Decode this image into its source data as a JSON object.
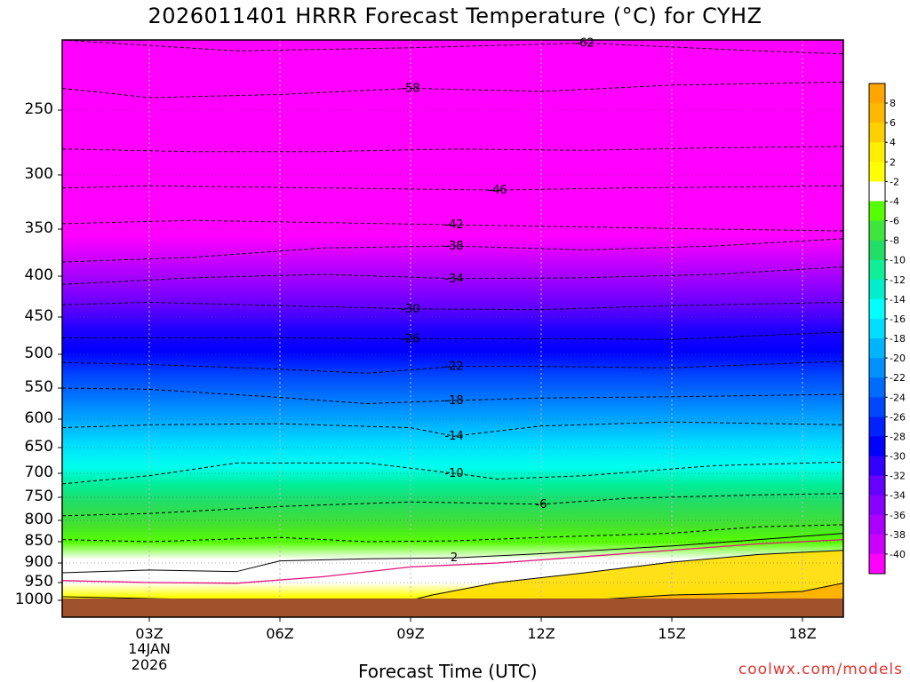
{
  "title": "2026011401 HRRR Forecast Temperature (°C) for CYHZ",
  "xlabel": "Forecast Time (UTC)",
  "credit": "coolwx.com/models",
  "date_label": {
    "day": "14JAN",
    "year": "2026"
  },
  "colors": {
    "ground": "#a0522d",
    "freezing_line": "#e0147a",
    "credit": "#e0342e"
  },
  "chart_data": {
    "type": "contour",
    "title": "2026011401 HRRR Forecast Temperature (°C) for CYHZ",
    "xlabel": "Forecast Time (UTC)",
    "ylabel": "",
    "y_axis_scale": "pressure (hPa), log-like, increasing downward",
    "ylim": [
      1000,
      205
    ],
    "xlim_hours": [
      1,
      19
    ],
    "x_ticks": [
      "03Z",
      "06Z",
      "09Z",
      "12Z",
      "15Z",
      "18Z"
    ],
    "x_tick_hours": [
      3,
      6,
      9,
      12,
      15,
      18
    ],
    "y_ticks": [
      250,
      300,
      350,
      400,
      450,
      500,
      550,
      600,
      650,
      700,
      750,
      800,
      850,
      900,
      950,
      1000
    ],
    "grid": true,
    "colorbar": {
      "position": "right",
      "labels": [
        "8",
        "6",
        "4",
        "2",
        "-2",
        "-4",
        "-6",
        "-8",
        "-10",
        "-12",
        "-14",
        "-16",
        "-18",
        "-20",
        "-22",
        "-24",
        "-26",
        "-28",
        "-30",
        "-32",
        "-34",
        "-36",
        "-38",
        "-40"
      ],
      "colors": [
        "#ffa500",
        "#ffb800",
        "#ffd000",
        "#ffee00",
        "#ffff00",
        "#ffffff",
        "#55ff00",
        "#3fe43f",
        "#22dd66",
        "#11ee99",
        "#00eecc",
        "#00ffff",
        "#00ddff",
        "#00b4ff",
        "#0090ff",
        "#006cff",
        "#0048ff",
        "#0022ff",
        "#0000ff",
        "#3300ff",
        "#6600ff",
        "#8800ff",
        "#aa00ff",
        "#cc00ff",
        "#ff00ff"
      ]
    },
    "contours": [
      {
        "value": -62,
        "label": "-62",
        "points": [
          [
            1,
            205
          ],
          [
            5,
            212
          ],
          [
            9,
            210
          ],
          [
            13,
            207
          ],
          [
            17,
            212
          ],
          [
            19,
            214
          ]
        ]
      },
      {
        "value": -58,
        "label": "-58",
        "points": [
          [
            1,
            236
          ],
          [
            3,
            242
          ],
          [
            6,
            240
          ],
          [
            9,
            236
          ],
          [
            12,
            238
          ],
          [
            15,
            234
          ],
          [
            19,
            232
          ]
        ]
      },
      {
        "value": -50,
        "label": "",
        "points": [
          [
            1,
            280
          ],
          [
            4,
            282
          ],
          [
            7,
            282
          ],
          [
            10,
            280
          ],
          [
            13,
            281
          ],
          [
            16,
            279
          ],
          [
            19,
            278
          ]
        ]
      },
      {
        "value": -46,
        "label": "-46",
        "points": [
          [
            1,
            312
          ],
          [
            3,
            310
          ],
          [
            7,
            312
          ],
          [
            11,
            314
          ],
          [
            14,
            312
          ],
          [
            19,
            310
          ]
        ]
      },
      {
        "value": -42,
        "label": "-42",
        "points": [
          [
            1,
            345
          ],
          [
            4,
            342
          ],
          [
            7,
            344
          ],
          [
            10,
            346
          ],
          [
            13,
            348
          ],
          [
            16,
            350
          ],
          [
            19,
            352
          ]
        ]
      },
      {
        "value": -38,
        "label": "-38",
        "points": [
          [
            1,
            385
          ],
          [
            4,
            380
          ],
          [
            7,
            370
          ],
          [
            10,
            368
          ],
          [
            13,
            372
          ],
          [
            16,
            368
          ],
          [
            19,
            360
          ]
        ]
      },
      {
        "value": -34,
        "label": "-34",
        "points": [
          [
            1,
            410
          ],
          [
            4,
            402
          ],
          [
            7,
            398
          ],
          [
            10,
            403
          ],
          [
            13,
            402
          ],
          [
            16,
            398
          ],
          [
            19,
            390
          ]
        ]
      },
      {
        "value": -30,
        "label": "-30",
        "points": [
          [
            1,
            435
          ],
          [
            3,
            432
          ],
          [
            6,
            436
          ],
          [
            9,
            440
          ],
          [
            12,
            441
          ],
          [
            15,
            436
          ],
          [
            19,
            432
          ]
        ]
      },
      {
        "value": -26,
        "label": "-26",
        "points": [
          [
            1,
            478
          ],
          [
            3,
            478
          ],
          [
            6,
            478
          ],
          [
            9,
            479
          ],
          [
            12,
            479
          ],
          [
            15,
            480
          ],
          [
            19,
            470
          ]
        ]
      },
      {
        "value": -22,
        "label": "-22",
        "points": [
          [
            1,
            512
          ],
          [
            3,
            515
          ],
          [
            6,
            522
          ],
          [
            8,
            528
          ],
          [
            10,
            518
          ],
          [
            12,
            518
          ],
          [
            15,
            520
          ],
          [
            19,
            510
          ]
        ]
      },
      {
        "value": -18,
        "label": "-18",
        "points": [
          [
            1,
            550
          ],
          [
            3,
            552
          ],
          [
            6,
            565
          ],
          [
            8,
            575
          ],
          [
            10,
            570
          ],
          [
            12,
            566
          ],
          [
            15,
            564
          ],
          [
            19,
            560
          ]
        ]
      },
      {
        "value": -14,
        "label": "-14",
        "points": [
          [
            1,
            615
          ],
          [
            3,
            610
          ],
          [
            6,
            608
          ],
          [
            9,
            615
          ],
          [
            10,
            630
          ],
          [
            12,
            612
          ],
          [
            15,
            605
          ],
          [
            19,
            610
          ]
        ]
      },
      {
        "value": -10,
        "label": "-10",
        "points": [
          [
            1,
            722
          ],
          [
            3,
            705
          ],
          [
            5,
            680
          ],
          [
            8,
            680
          ],
          [
            10,
            700
          ],
          [
            11,
            712
          ],
          [
            13,
            705
          ],
          [
            16,
            685
          ],
          [
            19,
            678
          ]
        ]
      },
      {
        "value": -6,
        "label": "-6",
        "points": [
          [
            1,
            790
          ],
          [
            3,
            785
          ],
          [
            6,
            770
          ],
          [
            9,
            760
          ],
          [
            12,
            765
          ],
          [
            14,
            752
          ],
          [
            17,
            745
          ],
          [
            19,
            742
          ]
        ]
      },
      {
        "value": -2,
        "label": "",
        "points": [
          [
            1,
            845
          ],
          [
            3,
            850
          ],
          [
            6,
            840
          ],
          [
            8,
            850
          ],
          [
            10,
            848
          ],
          [
            12,
            840
          ],
          [
            15,
            830
          ],
          [
            17,
            815
          ],
          [
            19,
            810
          ]
        ]
      },
      {
        "value": 2,
        "label": "2",
        "points": [
          [
            1,
            925
          ],
          [
            3,
            918
          ],
          [
            5,
            922
          ],
          [
            6,
            895
          ],
          [
            8,
            890
          ],
          [
            10,
            888
          ],
          [
            12,
            878
          ],
          [
            15,
            860
          ],
          [
            17,
            845
          ],
          [
            19,
            830
          ]
        ]
      },
      {
        "value": 0,
        "label": "",
        "points": [
          [
            1,
            945
          ],
          [
            3,
            950
          ],
          [
            5,
            952
          ],
          [
            7,
            935
          ],
          [
            9,
            910
          ],
          [
            11,
            900
          ],
          [
            13,
            885
          ],
          [
            15,
            870
          ],
          [
            17,
            855
          ],
          [
            19,
            845
          ]
        ]
      },
      {
        "value": 4,
        "label": "",
        "points": [
          [
            1,
            990
          ],
          [
            3,
            995
          ],
          [
            5,
            1000
          ],
          [
            9,
            1000
          ],
          [
            9.5,
            985
          ],
          [
            11,
            950
          ],
          [
            13,
            925
          ],
          [
            15,
            898
          ],
          [
            17,
            880
          ],
          [
            19,
            870
          ]
        ]
      },
      {
        "value": 6,
        "label": "",
        "points": [
          [
            13,
            1000
          ],
          [
            15,
            985
          ],
          [
            17,
            980
          ],
          [
            18,
            975
          ],
          [
            19,
            950
          ]
        ]
      }
    ]
  }
}
